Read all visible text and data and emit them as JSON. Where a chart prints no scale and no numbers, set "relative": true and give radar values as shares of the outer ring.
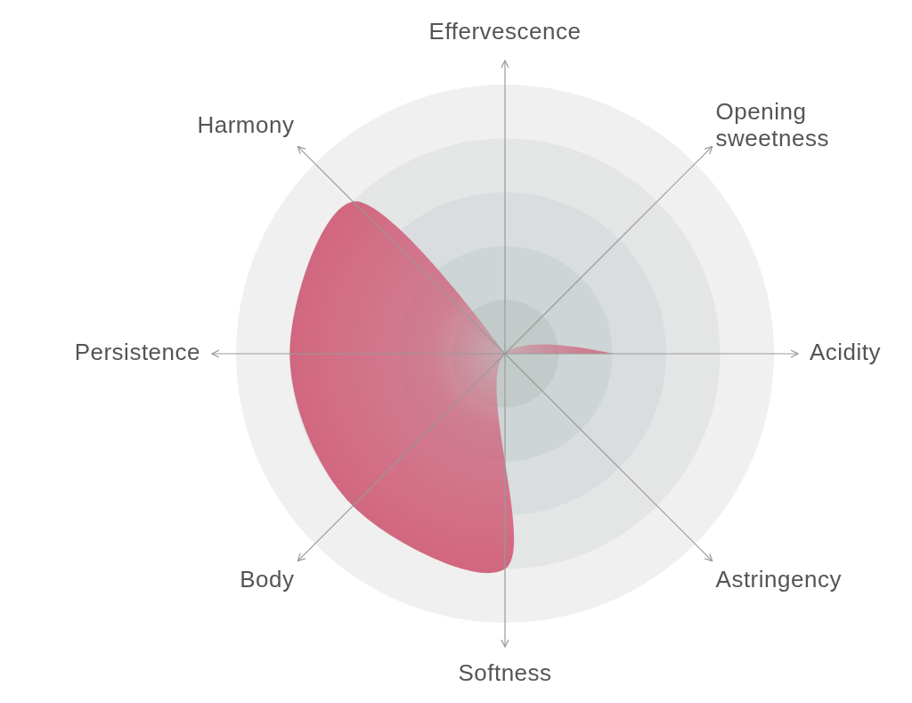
{
  "chart_data": {
    "type": "radar",
    "relative": true,
    "grid": true,
    "categories": [
      "Effervescence",
      "Opening sweetness",
      "Acidity",
      "Astringency",
      "Softness",
      "Body",
      "Persistence",
      "Harmony"
    ],
    "series": [
      {
        "color": "#d0607a",
        "values": [
          0,
          0,
          0.4,
          0,
          0.8,
          0.8,
          0.8,
          0.8
        ]
      }
    ]
  }
}
